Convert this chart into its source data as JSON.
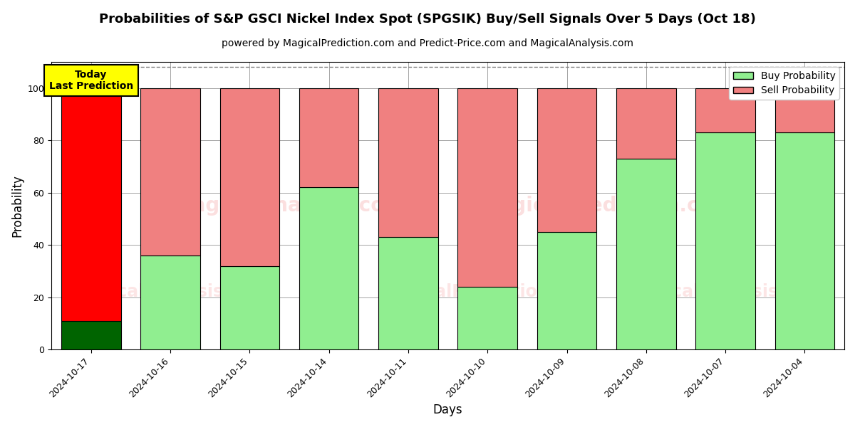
{
  "title": "Probabilities of S&P GSCI Nickel Index Spot (SPGSIK) Buy/Sell Signals Over 5 Days (Oct 18)",
  "subtitle": "powered by MagicalPrediction.com and Predict-Price.com and MagicalAnalysis.com",
  "xlabel": "Days",
  "ylabel": "Probability",
  "categories": [
    "2024-10-17",
    "2024-10-16",
    "2024-10-15",
    "2024-10-14",
    "2024-10-11",
    "2024-10-10",
    "2024-10-09",
    "2024-10-08",
    "2024-10-07",
    "2024-10-04"
  ],
  "buy_probs": [
    11,
    36,
    32,
    62,
    43,
    24,
    45,
    73,
    83,
    83
  ],
  "sell_probs": [
    89,
    64,
    68,
    38,
    57,
    76,
    55,
    27,
    17,
    17
  ],
  "buy_color_normal": "#90EE90",
  "sell_color_normal": "#F08080",
  "buy_color_today": "#006400",
  "sell_color_today": "#FF0000",
  "today_box_color": "#FFFF00",
  "today_label": "Today\nLast Prediction",
  "ylim": [
    0,
    110
  ],
  "yticks": [
    0,
    20,
    40,
    60,
    80,
    100
  ],
  "dashed_line_y": 108,
  "bar_width": 0.75,
  "title_fontsize": 13,
  "subtitle_fontsize": 10,
  "axis_label_fontsize": 12,
  "tick_fontsize": 9,
  "legend_fontsize": 10,
  "today_fontsize": 10,
  "watermark1": "MagicalAnalysis.com",
  "watermark2": "MagicalPrediction.com"
}
